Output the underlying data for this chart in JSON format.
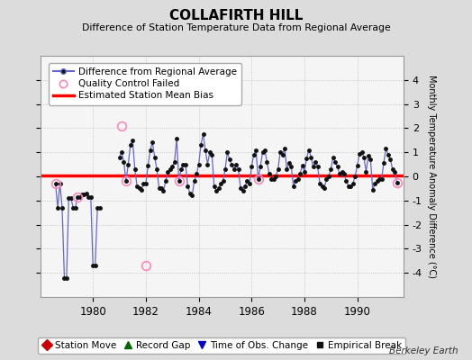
{
  "title": "COLLAFIRTH HILL",
  "subtitle": "Difference of Station Temperature Data from Regional Average",
  "ylabel": "Monthly Temperature Anomaly Difference (°C)",
  "credit": "Berkeley Earth",
  "ylim": [
    -5,
    5
  ],
  "xlim_start": 1978.0,
  "xlim_end": 1991.75,
  "bias_value": 0.05,
  "background_color": "#dcdcdc",
  "plot_bg_color": "#f5f5f5",
  "grid_color": "#bbbbbb",
  "line_color": "#6666cc",
  "marker_color": "#111111",
  "bias_color": "#ff0000",
  "qc_color": "#ff88bb",
  "legend1_items": [
    "Difference from Regional Average",
    "Quality Control Failed",
    "Estimated Station Mean Bias"
  ],
  "legend2_items": [
    "Station Move",
    "Record Gap",
    "Time of Obs. Change",
    "Empirical Break"
  ],
  "early_x": [
    1978.583,
    1978.667,
    1978.75,
    1978.833,
    1978.917,
    1979.0,
    1979.083,
    1979.167,
    1979.25,
    1979.333,
    1979.417,
    1979.5,
    1979.583,
    1979.667,
    1979.75,
    1979.833,
    1979.917,
    1980.0,
    1980.083,
    1980.167,
    1980.25
  ],
  "early_y": [
    -0.3,
    -1.3,
    -0.3,
    -1.3,
    -4.2,
    -4.2,
    -0.9,
    -0.9,
    -1.3,
    -1.3,
    -0.85,
    -0.85,
    -0.75,
    -0.75,
    -0.7,
    -0.85,
    -0.85,
    -3.7,
    -3.7,
    -1.3,
    -1.3
  ],
  "main_x": [
    1981.0,
    1981.083,
    1981.167,
    1981.25,
    1981.333,
    1981.417,
    1981.5,
    1981.583,
    1981.667,
    1981.75,
    1981.833,
    1981.917,
    1982.0,
    1982.083,
    1982.167,
    1982.25,
    1982.333,
    1982.417,
    1982.5,
    1982.583,
    1982.667,
    1982.75,
    1982.833,
    1982.917,
    1983.0,
    1983.083,
    1983.167,
    1983.25,
    1983.333,
    1983.417,
    1983.5,
    1983.583,
    1983.667,
    1983.75,
    1983.833,
    1983.917,
    1984.0,
    1984.083,
    1984.167,
    1984.25,
    1984.333,
    1984.417,
    1984.5,
    1984.583,
    1984.667,
    1984.75,
    1984.833,
    1984.917,
    1985.0,
    1985.083,
    1985.167,
    1985.25,
    1985.333,
    1985.417,
    1985.5,
    1985.583,
    1985.667,
    1985.75,
    1985.833,
    1985.917,
    1986.0,
    1986.083,
    1986.167,
    1986.25,
    1986.333,
    1986.417,
    1986.5,
    1986.583,
    1986.667,
    1986.75,
    1986.833,
    1986.917,
    1987.0,
    1987.083,
    1987.167,
    1987.25,
    1987.333,
    1987.417,
    1987.5,
    1987.583,
    1987.667,
    1987.75,
    1987.833,
    1987.917,
    1988.0,
    1988.083,
    1988.167,
    1988.25,
    1988.333,
    1988.417,
    1988.5,
    1988.583,
    1988.667,
    1988.75,
    1988.833,
    1988.917,
    1989.0,
    1989.083,
    1989.167,
    1989.25,
    1989.333,
    1989.417,
    1989.5,
    1989.583,
    1989.667,
    1989.75,
    1989.833,
    1989.917,
    1990.0,
    1990.083,
    1990.167,
    1990.25,
    1990.333,
    1990.417,
    1990.5,
    1990.583,
    1990.667,
    1990.75,
    1990.833,
    1990.917,
    1991.0,
    1991.083,
    1991.167,
    1991.25,
    1991.333,
    1991.417,
    1991.5
  ],
  "main_y": [
    0.8,
    1.0,
    0.6,
    -0.2,
    0.5,
    1.3,
    1.5,
    0.3,
    -0.4,
    -0.5,
    -0.55,
    -0.3,
    -0.3,
    0.45,
    1.1,
    1.4,
    0.8,
    0.3,
    -0.5,
    -0.5,
    -0.6,
    -0.2,
    0.2,
    0.3,
    0.4,
    0.6,
    1.55,
    -0.2,
    0.3,
    0.5,
    0.5,
    -0.4,
    -0.7,
    -0.8,
    -0.2,
    0.1,
    0.5,
    1.3,
    1.75,
    1.1,
    0.5,
    1.0,
    0.9,
    -0.4,
    -0.6,
    -0.5,
    -0.3,
    -0.2,
    0.3,
    1.0,
    0.7,
    0.5,
    0.3,
    0.5,
    0.3,
    -0.5,
    -0.6,
    -0.4,
    -0.2,
    -0.3,
    0.4,
    0.9,
    1.1,
    -0.1,
    0.4,
    1.0,
    1.1,
    0.6,
    0.1,
    -0.1,
    -0.1,
    0.0,
    0.3,
    1.0,
    0.9,
    1.15,
    0.3,
    0.55,
    0.4,
    -0.4,
    -0.2,
    -0.1,
    0.1,
    0.45,
    0.2,
    0.75,
    1.1,
    0.8,
    0.4,
    0.6,
    0.4,
    -0.3,
    -0.4,
    -0.5,
    -0.1,
    0.0,
    0.3,
    0.8,
    0.6,
    0.4,
    0.1,
    0.2,
    0.1,
    -0.2,
    -0.4,
    -0.4,
    -0.3,
    0.0,
    0.45,
    0.95,
    1.0,
    0.8,
    0.2,
    0.85,
    0.7,
    -0.55,
    -0.3,
    -0.2,
    -0.1,
    -0.1,
    0.55,
    1.15,
    0.9,
    0.7,
    0.3,
    0.2,
    -0.25
  ],
  "qc_x": [
    1978.583,
    1979.417,
    1981.083,
    1981.25,
    1982.0,
    1983.25,
    1986.25,
    1991.5
  ],
  "qc_y": [
    -0.3,
    -0.85,
    2.1,
    -0.2,
    -3.7,
    -0.2,
    -0.1,
    -0.25
  ]
}
